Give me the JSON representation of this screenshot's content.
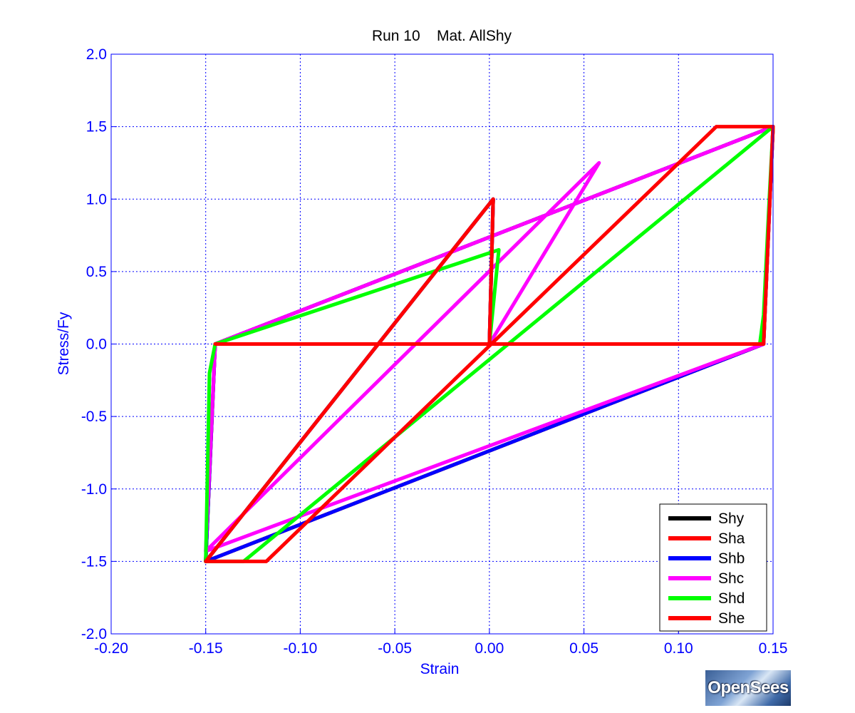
{
  "chart_data": {
    "type": "line",
    "title": "Run 10    Mat. AllShy",
    "xlabel": "Strain",
    "ylabel": "Stress/Fy",
    "xlim": [
      -0.2,
      0.15
    ],
    "ylim": [
      -2.0,
      2.0
    ],
    "x_ticks": [
      -0.2,
      -0.15,
      -0.1,
      -0.05,
      0.0,
      0.05,
      0.1,
      0.15
    ],
    "x_tick_labels": [
      "-0.20",
      "-0.15",
      "-0.10",
      "-0.05",
      "0.00",
      "0.05",
      "0.10",
      "0.15"
    ],
    "y_ticks": [
      2.0,
      1.5,
      1.0,
      0.5,
      0.0,
      -0.5,
      -1.0,
      -1.5,
      -2.0
    ],
    "y_tick_labels": [
      "2.0",
      "1.5",
      "1.0",
      "0.5",
      "0.0",
      "-0.5",
      "-1.0",
      "-1.5",
      "-2.0"
    ],
    "grid": true,
    "legend_position": "bottom-right",
    "series": [
      {
        "name": "Shy",
        "color": "#000000",
        "points": [
          [
            0,
            0
          ],
          [
            0.002,
            1.0
          ],
          [
            -0.15,
            -1.5
          ],
          [
            -0.145,
            0.0
          ],
          [
            0.15,
            1.5
          ],
          [
            0.145,
            0.0
          ],
          [
            -0.15,
            -1.5
          ]
        ]
      },
      {
        "name": "Sha",
        "color": "#ff0000",
        "points": [
          [
            0,
            0
          ],
          [
            0.002,
            1.0
          ],
          [
            -0.15,
            -1.5
          ],
          [
            -0.145,
            0.0
          ],
          [
            0.15,
            1.5
          ],
          [
            0.145,
            0.0
          ],
          [
            -0.15,
            -1.5
          ]
        ]
      },
      {
        "name": "Shb",
        "color": "#0000ff",
        "points": [
          [
            0,
            0
          ],
          [
            0.002,
            1.0
          ],
          [
            -0.15,
            -1.5
          ],
          [
            -0.145,
            0.0
          ],
          [
            0.15,
            1.5
          ],
          [
            0.145,
            0.0
          ],
          [
            -0.15,
            -1.5
          ]
        ]
      },
      {
        "name": "Shc",
        "color": "#ff00ff",
        "points": [
          [
            0,
            0
          ],
          [
            0.058,
            1.25
          ],
          [
            -0.15,
            -1.43
          ],
          [
            -0.145,
            0.0
          ],
          [
            0.15,
            1.5
          ],
          [
            0.145,
            0.0
          ],
          [
            -0.15,
            -1.43
          ]
        ]
      },
      {
        "name": "Shd",
        "color": "#00ff00",
        "points": [
          [
            0,
            0
          ],
          [
            0.005,
            0.65
          ],
          [
            -0.145,
            0.0
          ],
          [
            -0.148,
            -0.2
          ],
          [
            -0.15,
            -1.5
          ],
          [
            -0.13,
            -1.5
          ],
          [
            0.15,
            1.5
          ],
          [
            0.148,
            1.0
          ],
          [
            0.145,
            0.2
          ],
          [
            0.143,
            0.0
          ]
        ]
      },
      {
        "name": "She",
        "color": "#ff0000",
        "points": [
          [
            0,
            0
          ],
          [
            0.002,
            1.0
          ],
          [
            -0.15,
            -1.5
          ],
          [
            -0.118,
            -1.5
          ],
          [
            0.12,
            1.5
          ],
          [
            0.15,
            1.5
          ],
          [
            0.145,
            0.0
          ],
          [
            -0.145,
            0.0
          ]
        ]
      }
    ]
  },
  "logo": {
    "text": "OpenSees"
  }
}
